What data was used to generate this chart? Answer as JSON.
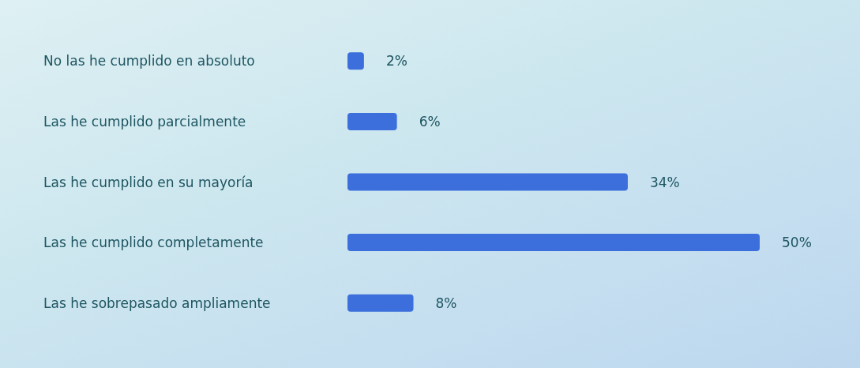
{
  "chart_data": {
    "type": "bar",
    "orientation": "horizontal",
    "categories": [
      "No las he cumplido en absoluto",
      "Las he cumplido parcialmente",
      "Las he cumplido en su mayoría",
      "Las he cumplido completamente",
      "Las he sobrepasado ampliamente"
    ],
    "values": [
      2,
      6,
      34,
      50,
      8
    ],
    "value_labels": [
      "2%",
      "6%",
      "34%",
      "50%",
      "8%"
    ],
    "color": "#3d6fdc",
    "tick_labels": "y"
  }
}
